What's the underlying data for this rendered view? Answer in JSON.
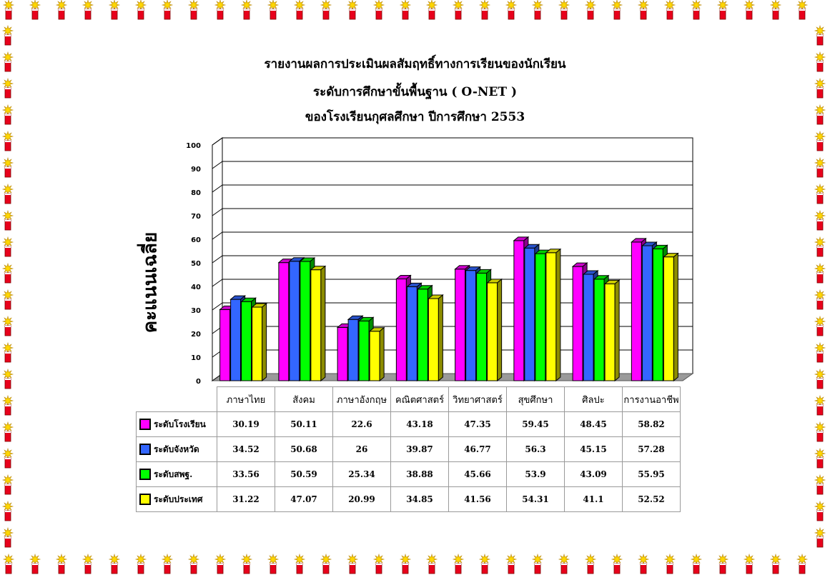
{
  "chart_data": {
    "type": "bar",
    "title_lines": [
      "รายงานผลการประเมินผลสัมฤทธิ์ทางการเรียนของนักเรียน",
      "ระดับการศึกษาขั้นพื้นฐาน  ( O-NET )",
      "ของโรงเรียนกุศลศึกษา ปีการศึกษา 2553"
    ],
    "ylabel": "คะแนนเฉลี่ย",
    "ylim": [
      0,
      100
    ],
    "yticks": [
      "0",
      "10",
      "20",
      "30",
      "40",
      "50",
      "60",
      "70",
      "80",
      "90",
      "100"
    ],
    "categories": [
      "ภาษาไทย",
      "สังคม",
      "ภาษาอังกฤษ",
      "คณิตศาสตร์",
      "วิทยาศาสตร์",
      "สุขศึกษา",
      "ศิลปะ",
      "การงานอาชีพ"
    ],
    "series": [
      {
        "name": "ระดับโรงเรียน",
        "color": "#ff00ff",
        "values": [
          30.19,
          50.11,
          22.6,
          43.18,
          47.35,
          59.45,
          48.45,
          58.82
        ],
        "labels": [
          "30.19",
          "50.11",
          "22.6",
          "43.18",
          "47.35",
          "59.45",
          "48.45",
          "58.82"
        ]
      },
      {
        "name": "ระดับจังหวัด",
        "color": "#3366ff",
        "values": [
          34.52,
          50.68,
          26,
          39.87,
          46.77,
          56.3,
          45.15,
          57.28
        ],
        "labels": [
          "34.52",
          "50.68",
          "26",
          "39.87",
          "46.77",
          "56.3",
          "45.15",
          "57.28"
        ]
      },
      {
        "name": "ระดับสพฐ.",
        "color": "#00ff00",
        "values": [
          33.56,
          50.59,
          25.34,
          38.88,
          45.66,
          53.9,
          43.09,
          55.95
        ],
        "labels": [
          "33.56",
          "50.59",
          "25.34",
          "38.88",
          "45.66",
          "53.9",
          "43.09",
          "55.95"
        ]
      },
      {
        "name": "ระดับประเทศ",
        "color": "#ffff00",
        "values": [
          31.22,
          47.07,
          20.99,
          34.85,
          41.56,
          54.31,
          41.1,
          52.52
        ],
        "labels": [
          "31.22",
          "47.07",
          "20.99",
          "34.85",
          "41.56",
          "54.31",
          "41.1",
          "52.52"
        ]
      }
    ],
    "grid": true,
    "legend": "data-table"
  }
}
